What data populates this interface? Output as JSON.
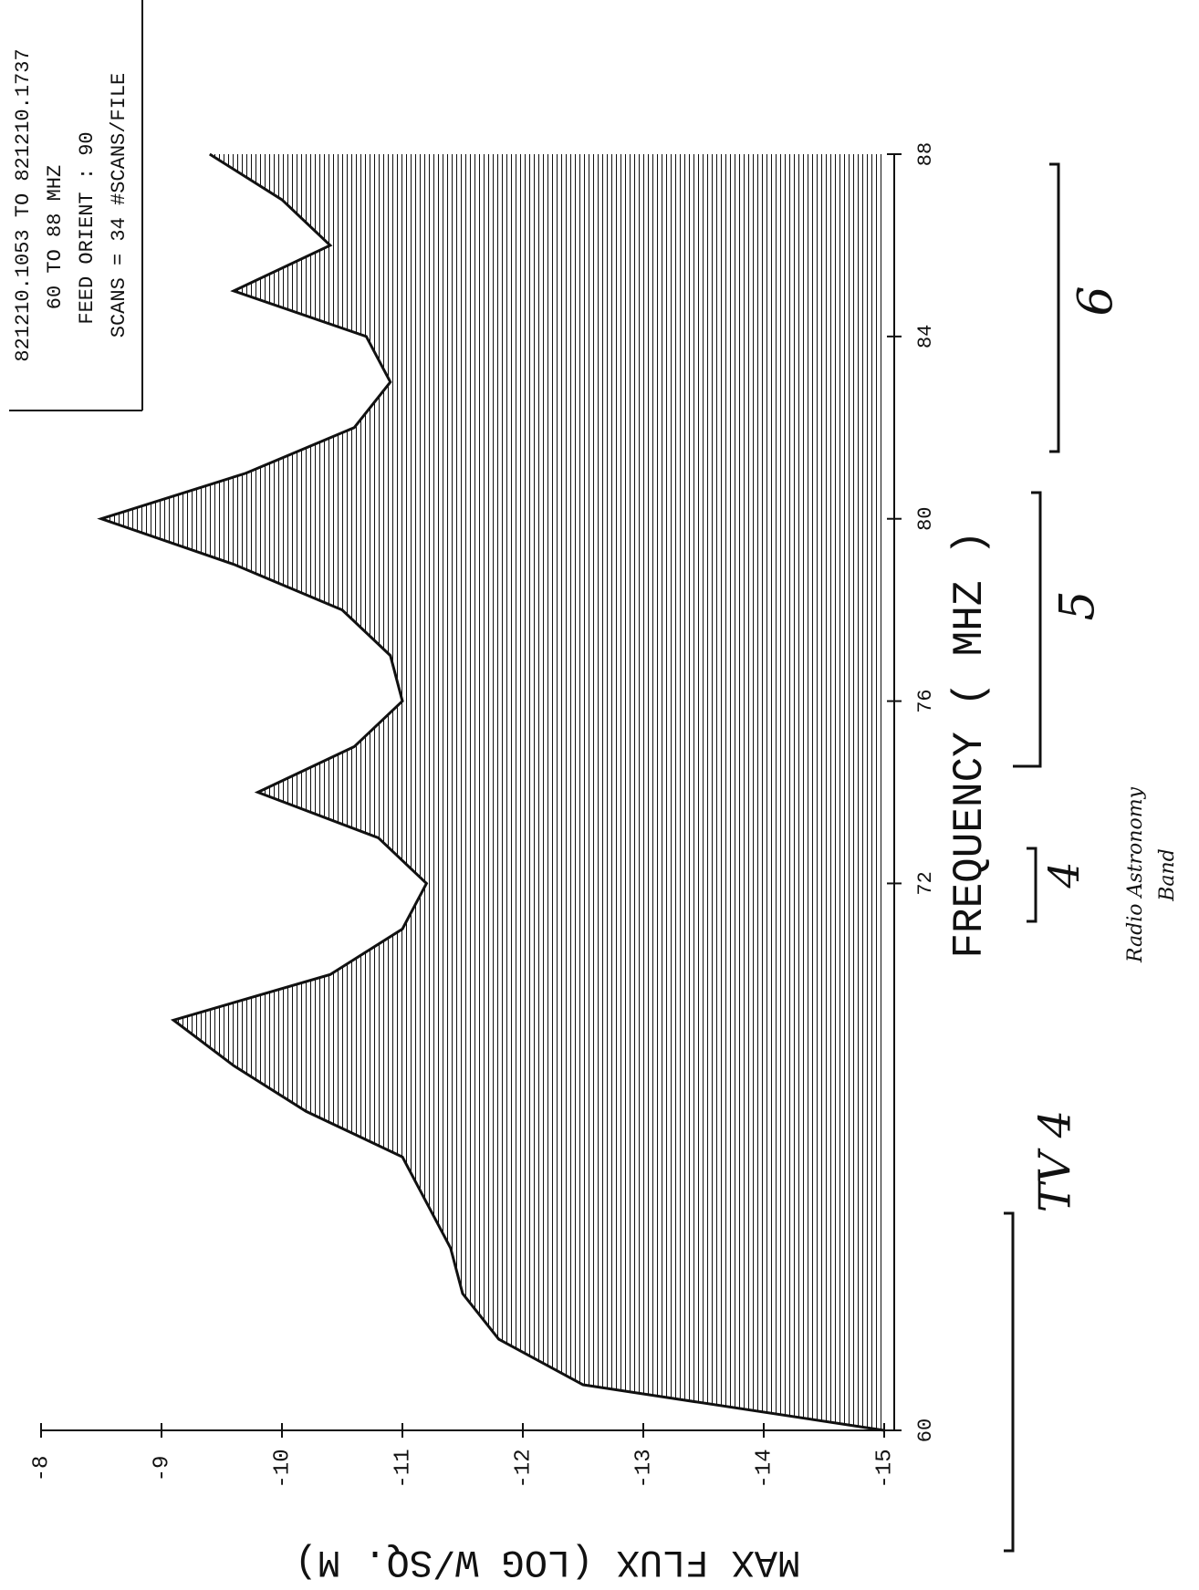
{
  "chart_data": {
    "type": "line",
    "xlabel": "FREQUENCY ( MHZ )",
    "ylabel": "MAX FLUX (LOG W/SQ. M)",
    "info": [
      "821210.1053 TO 821210.1737",
      "60 TO 88 MHZ",
      "FEED ORIENT : 90",
      "SCANS = 34  #SCANS/FILE"
    ],
    "x": [
      60,
      61,
      62,
      63,
      64,
      65,
      66,
      67,
      68,
      69,
      70,
      71,
      72,
      73,
      74,
      75,
      76,
      77,
      78,
      79,
      80,
      81,
      82,
      83,
      84,
      85,
      86,
      87,
      88
    ],
    "series": [
      {
        "color": "#111111",
        "values": [
          -15.0,
          -12.5,
          -11.8,
          -11.5,
          -11.4,
          -11.2,
          -11.0,
          -10.2,
          -9.6,
          -9.1,
          -10.4,
          -11.0,
          -11.2,
          -10.8,
          -9.8,
          -10.6,
          -11.0,
          -10.9,
          -10.5,
          -9.6,
          -8.5,
          -9.7,
          -10.6,
          -10.9,
          -10.7,
          -9.6,
          -10.4,
          -10.0,
          -9.4
        ]
      }
    ],
    "xlim": [
      60,
      88
    ],
    "xticks": [
      60,
      72,
      76,
      80,
      84,
      88
    ],
    "ylim": [
      -15,
      -8
    ],
    "yticks": [
      -8,
      -9,
      -10,
      -11,
      -12,
      -13,
      -14,
      -15
    ],
    "annotations": [
      "TV 4",
      "4",
      "5",
      "6",
      "Radio Astronomy",
      "Band"
    ]
  }
}
